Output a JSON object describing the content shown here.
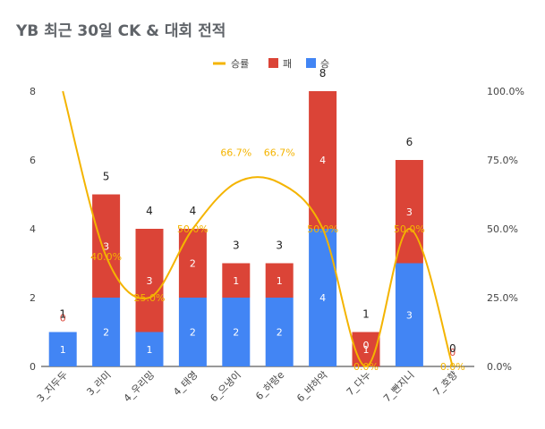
{
  "chart_data": {
    "type": "bar",
    "title": "YB 최근 30일 CK & 대회 전적",
    "categories": [
      "3_지두두",
      "3_라미",
      "4_우리밍",
      "4_태영",
      "6_으냉이",
      "6_하랑e",
      "6_뱌하악",
      "7_다누",
      "7_빤지니",
      "7_호향"
    ],
    "series": [
      {
        "name": "승",
        "color": "#4285f4",
        "values": [
          1,
          2,
          1,
          2,
          2,
          2,
          4,
          0,
          3,
          0
        ]
      },
      {
        "name": "패",
        "color": "#db4437",
        "values": [
          0,
          3,
          3,
          2,
          1,
          1,
          4,
          1,
          3,
          0
        ]
      }
    ],
    "totals": [
      1,
      5,
      4,
      4,
      3,
      3,
      8,
      1,
      6,
      0
    ],
    "win_rate": {
      "name": "승률",
      "color": "#f4b400",
      "values": [
        100.0,
        40.0,
        25.0,
        50.0,
        66.7,
        66.7,
        50.0,
        0.0,
        50.0,
        0.0
      ],
      "labels": [
        "",
        "40.0%",
        "25.0%",
        "50.0%",
        "66.7%",
        "66.7%",
        "50.0%",
        "0.0%",
        "50.0%",
        "0.0%"
      ]
    },
    "win_labels": [
      "1",
      "2",
      "1",
      "2",
      "2",
      "2",
      "4",
      "0",
      "3",
      ""
    ],
    "loss_labels": [
      "0",
      "3",
      "3",
      "2",
      "1",
      "1",
      "4",
      "1",
      "3",
      "0"
    ],
    "ylim": [
      0,
      8
    ],
    "y_ticks": [
      0,
      2,
      4,
      6,
      8
    ],
    "y2lim": [
      0,
      100
    ],
    "y2_ticks": [
      "0.0%",
      "25.0%",
      "50.0%",
      "75.0%",
      "100.0%"
    ],
    "legend": [
      "승률",
      "패",
      "승"
    ],
    "legend_position": "top",
    "grid": false
  }
}
